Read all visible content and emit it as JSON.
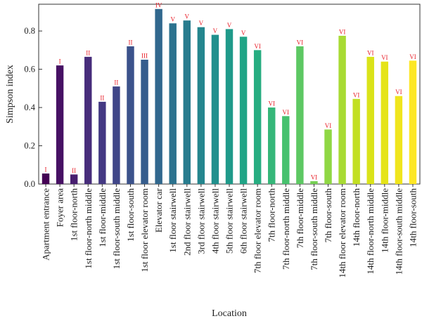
{
  "chart_data": {
    "type": "bar",
    "xlabel": "Location",
    "ylabel": "Simpson index",
    "ylim": [
      0,
      0.94
    ],
    "yticks": [
      0.0,
      0.2,
      0.4,
      0.6,
      0.8
    ],
    "ytick_labels": [
      "0.0",
      "0.2",
      "0.4",
      "0.6",
      "0.8"
    ],
    "grid": false,
    "categories": [
      "Apartment entrance",
      "Foyer area",
      "1st floor-north",
      "1st floor-north middle",
      "1st floor-middle",
      "1st floor-south middle",
      "1st floor-south",
      "1st floor elevator room",
      "Elevator car",
      "1st floor stairwell",
      "2nd floor stairwell",
      "3rd floor stairwell",
      "4th floor stairwell",
      "5th floor stairwell",
      "6th floor stairwell",
      "7th floor elevator room",
      "7th floor-north",
      "7th floor-north middle",
      "7th floor-middle",
      "7th floor-south middle",
      "7th floor-south",
      "14th floor elevator room",
      "14th floor-north",
      "14th floor-north middle",
      "14th floor-middle",
      "14th floor-south middle",
      "14th floor-south"
    ],
    "values": [
      0.055,
      0.62,
      0.05,
      0.665,
      0.43,
      0.51,
      0.72,
      0.65,
      0.915,
      0.84,
      0.855,
      0.82,
      0.78,
      0.81,
      0.77,
      0.7,
      0.4,
      0.355,
      0.72,
      0.015,
      0.285,
      0.775,
      0.445,
      0.665,
      0.64,
      0.46,
      0.645
    ],
    "labels": [
      "I",
      "I",
      "II",
      "II",
      "II",
      "II",
      "II",
      "III",
      "IV",
      "V",
      "V",
      "V",
      "V",
      "V",
      "V",
      "VI",
      "VI",
      "VI",
      "VI",
      "VI",
      "VI",
      "VI",
      "VI",
      "VI",
      "VI",
      "VI",
      "VI"
    ],
    "colors": [
      "#440154",
      "#471164",
      "#481f70",
      "#472d7b",
      "#443983",
      "#404688",
      "#3b528b",
      "#365d8d",
      "#31688e",
      "#2c728e",
      "#287c8e",
      "#24868e",
      "#21908d",
      "#1f9a8a",
      "#20a486",
      "#27ad81",
      "#35b779",
      "#47c16e",
      "#5dc863",
      "#75d054",
      "#8fd744",
      "#a8db34",
      "#c2df23",
      "#dae319",
      "#e5e419",
      "#f0e51d",
      "#fde725"
    ]
  }
}
